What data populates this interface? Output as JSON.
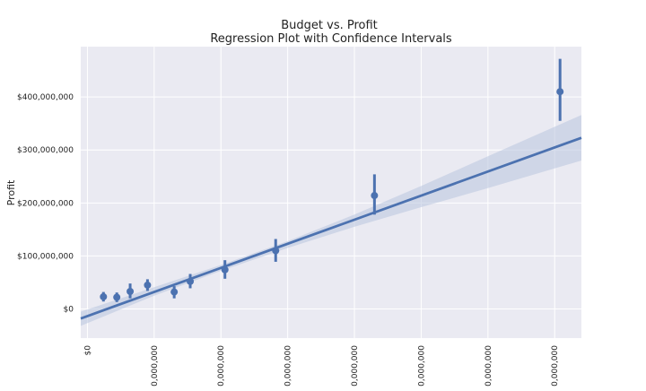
{
  "chart_data": {
    "type": "scatter",
    "title": "Budget vs. Profit",
    "subtitle": "Regression Plot with Confidence Intervals",
    "xlabel": "",
    "ylabel": "Profit",
    "xlim": [
      -5000000,
      370000000
    ],
    "ylim": [
      -55000000,
      495000000
    ],
    "grid": true,
    "x_ticks": [
      {
        "value": 0,
        "label": "$0"
      },
      {
        "value": 50000000,
        "label": "0,000,000"
      },
      {
        "value": 100000000,
        "label": "0,000,000"
      },
      {
        "value": 150000000,
        "label": "0,000,000"
      },
      {
        "value": 200000000,
        "label": "0,000,000"
      },
      {
        "value": 250000000,
        "label": "0,000,000"
      },
      {
        "value": 300000000,
        "label": "0,000,000"
      },
      {
        "value": 350000000,
        "label": "0,000,000"
      }
    ],
    "y_ticks": [
      {
        "value": 0,
        "label": "$0"
      },
      {
        "value": 100000000,
        "label": "$100,000,000"
      },
      {
        "value": 200000000,
        "label": "$200,000,000"
      },
      {
        "value": 300000000,
        "label": "$300,000,000"
      },
      {
        "value": 400000000,
        "label": "$400,000,000"
      }
    ],
    "points": [
      {
        "x": 12000000,
        "y": 23000000,
        "lo": 14000000,
        "hi": 32000000
      },
      {
        "x": 22000000,
        "y": 22000000,
        "lo": 13000000,
        "hi": 31000000
      },
      {
        "x": 32000000,
        "y": 33000000,
        "lo": 20000000,
        "hi": 48000000
      },
      {
        "x": 45000000,
        "y": 45000000,
        "lo": 34000000,
        "hi": 56000000
      },
      {
        "x": 65000000,
        "y": 32000000,
        "lo": 20000000,
        "hi": 43000000
      },
      {
        "x": 77000000,
        "y": 52000000,
        "lo": 39000000,
        "hi": 66000000
      },
      {
        "x": 103000000,
        "y": 74000000,
        "lo": 57000000,
        "hi": 92000000
      },
      {
        "x": 141000000,
        "y": 110000000,
        "lo": 89000000,
        "hi": 132000000
      },
      {
        "x": 215000000,
        "y": 214000000,
        "lo": 178000000,
        "hi": 254000000
      },
      {
        "x": 354000000,
        "y": 410000000,
        "lo": 355000000,
        "hi": 472000000
      }
    ],
    "regression": {
      "x": [
        -5000000,
        50000000,
        100000000,
        150000000,
        200000000,
        250000000,
        300000000,
        370000000
      ],
      "y": [
        -18000000,
        33000000,
        77000000,
        121000000,
        166000000,
        212000000,
        258000000,
        323000000
      ],
      "lo": [
        -32000000,
        25000000,
        72000000,
        115000000,
        155000000,
        192000000,
        228000000,
        280000000
      ],
      "hi": [
        -5000000,
        41000000,
        83000000,
        128000000,
        178000000,
        232000000,
        288000000,
        366000000
      ]
    },
    "colors": {
      "background": "#EAEAF2",
      "grid": "#FFFFFF",
      "series": "#4C72B0",
      "band": "#B8C4DE"
    }
  }
}
